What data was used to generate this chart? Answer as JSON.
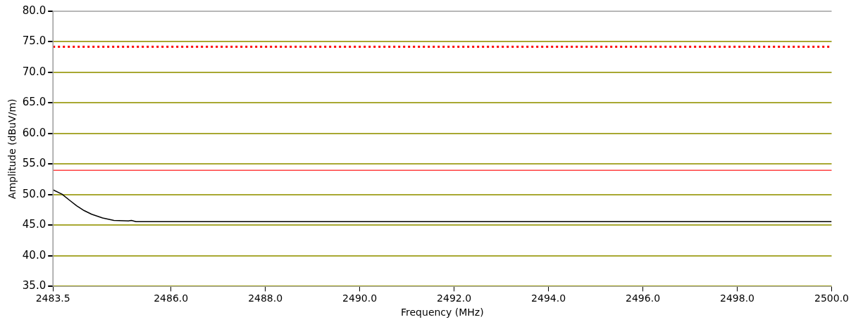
{
  "chart_data": {
    "type": "line",
    "xlabel": "Frequency (MHz)",
    "ylabel": "Amplitude (dBuV/m)",
    "x": [
      2483.5,
      2483.69,
      2483.85,
      2484.0,
      2484.16,
      2484.32,
      2484.55,
      2484.79,
      2485.1,
      2485.16,
      2485.26,
      2500.0
    ],
    "series": [
      {
        "color": "#000000",
        "values": [
          50.8,
          50.1,
          49.1,
          48.2,
          47.4,
          46.8,
          46.2,
          45.8,
          45.7,
          45.8,
          45.6,
          45.6
        ]
      }
    ],
    "xlim": [
      2483.5,
      2500.0
    ],
    "xticks": [
      {
        "value": 2483.5,
        "label": "2483.5"
      },
      {
        "value": 2486,
        "label": "2486.0"
      },
      {
        "value": 2488,
        "label": "2488.0"
      },
      {
        "value": 2490,
        "label": "2490.0"
      },
      {
        "value": 2492,
        "label": "2492.0"
      },
      {
        "value": 2494,
        "label": "2494.0"
      },
      {
        "value": 2496,
        "label": "2496.0"
      },
      {
        "value": 2498,
        "label": "2498.0"
      },
      {
        "value": 2500,
        "label": "2500.0"
      }
    ],
    "ylim": [
      35,
      80
    ],
    "yticks": [
      {
        "value": 35,
        "label": "35.0"
      },
      {
        "value": 40,
        "label": "40.0"
      },
      {
        "value": 45,
        "label": "45.0"
      },
      {
        "value": 50,
        "label": "50.0"
      },
      {
        "value": 55,
        "label": "55.0"
      },
      {
        "value": 60,
        "label": "60.0"
      },
      {
        "value": 65,
        "label": "65.0"
      },
      {
        "value": 70,
        "label": "70.0"
      },
      {
        "value": 75,
        "label": "75.0"
      },
      {
        "value": 80,
        "label": "80.0"
      }
    ],
    "ref_lines": [
      {
        "axis": "y",
        "value": 74.2,
        "color": "#ff0000",
        "line_style": "dotted"
      },
      {
        "axis": "y",
        "value": 54.0,
        "color": "#ff4040",
        "line_style": "solid"
      }
    ],
    "grid": "y",
    "legend": false,
    "marker": "none",
    "line_style": "solid"
  }
}
